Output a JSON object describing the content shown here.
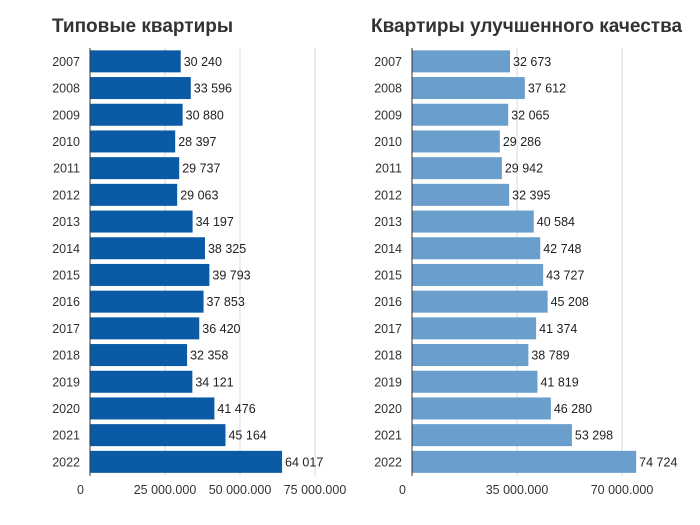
{
  "chart_data": [
    {
      "type": "bar",
      "orientation": "horizontal",
      "title": "Типовые квартиры",
      "color": "#0b5aa5",
      "categories": [
        "2007",
        "2008",
        "2009",
        "2010",
        "2011",
        "2012",
        "2013",
        "2014",
        "2015",
        "2016",
        "2017",
        "2018",
        "2019",
        "2020",
        "2021",
        "2022"
      ],
      "values": [
        30240,
        33596,
        30880,
        28397,
        29737,
        29063,
        34197,
        38325,
        39793,
        37853,
        36420,
        32358,
        34121,
        41476,
        45164,
        64017
      ],
      "value_labels": [
        "30 240",
        "33 596",
        "30 880",
        "28 397",
        "29 737",
        "29 063",
        "34 197",
        "38 325",
        "39 793",
        "37 853",
        "36 420",
        "32 358",
        "34 121",
        "41 476",
        "45 164",
        "64 017"
      ],
      "xlim": [
        0,
        80000
      ],
      "grid_values": [
        25000,
        50000,
        75000
      ],
      "ticks": [
        {
          "value": 0,
          "label": "0"
        },
        {
          "value": 25000,
          "label": "25 000.000"
        },
        {
          "value": 50000,
          "label": "50 000.000"
        },
        {
          "value": 75000,
          "label": "75 000.000"
        }
      ]
    },
    {
      "type": "bar",
      "orientation": "horizontal",
      "title": "Квартиры улучшенного качества",
      "color": "#699ecd",
      "categories": [
        "2007",
        "2008",
        "2009",
        "2010",
        "2011",
        "2012",
        "2013",
        "2014",
        "2015",
        "2016",
        "2017",
        "2018",
        "2019",
        "2020",
        "2021",
        "2022"
      ],
      "values": [
        32673,
        37612,
        32065,
        29286,
        29942,
        32395,
        40584,
        42748,
        43727,
        45208,
        41374,
        38789,
        41819,
        46280,
        53298,
        74724
      ],
      "value_labels": [
        "32 673",
        "37 612",
        "32 065",
        "29 286",
        "29 942",
        "32 395",
        "40 584",
        "42 748",
        "43 727",
        "45 208",
        "41 374",
        "38 789",
        "41 819",
        "46 280",
        "53 298",
        "74 724"
      ],
      "xlim": [
        0,
        80000
      ],
      "grid_values": [
        35000,
        70000
      ],
      "ticks": [
        {
          "value": 0,
          "label": "0"
        },
        {
          "value": 35000,
          "label": "35 000.000"
        },
        {
          "value": 70000,
          "label": "70 000.000"
        }
      ]
    }
  ]
}
